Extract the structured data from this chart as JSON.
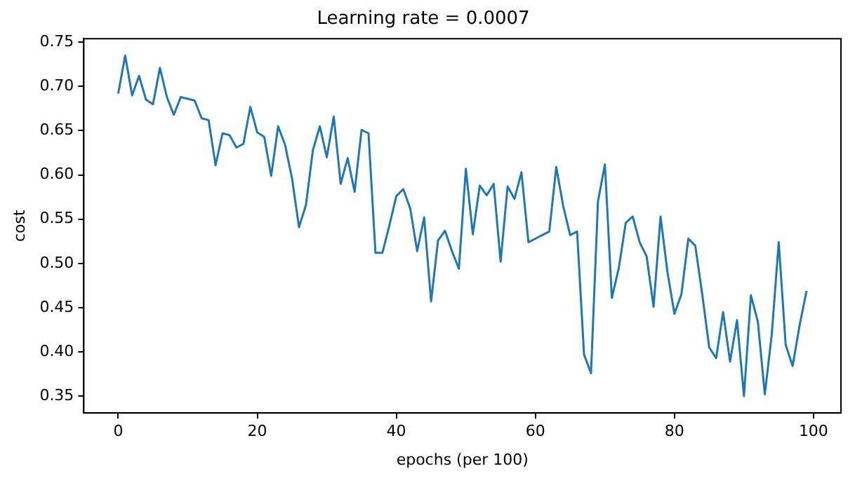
{
  "chart_data": {
    "type": "line",
    "title": "Learning rate = 0.0007",
    "xlabel": "epochs (per 100)",
    "ylabel": "cost",
    "x": [
      0,
      1,
      2,
      3,
      4,
      5,
      6,
      7,
      8,
      9,
      10,
      11,
      12,
      13,
      14,
      15,
      16,
      17,
      18,
      19,
      20,
      21,
      22,
      23,
      24,
      25,
      26,
      27,
      28,
      29,
      30,
      31,
      32,
      33,
      34,
      35,
      36,
      37,
      38,
      39,
      40,
      41,
      42,
      43,
      44,
      45,
      46,
      47,
      48,
      49,
      50,
      51,
      52,
      53,
      54,
      55,
      56,
      57,
      58,
      59,
      60,
      61,
      62,
      63,
      64,
      65,
      66,
      67,
      68,
      69,
      70,
      71,
      72,
      73,
      74,
      75,
      76,
      77,
      78,
      79,
      80,
      81,
      82,
      83,
      84,
      85,
      86,
      87,
      88,
      89,
      90,
      91,
      92,
      93,
      94,
      95,
      96,
      97,
      98,
      99
    ],
    "series": [
      {
        "color": "#1f77b4",
        "values": [
          0.692,
          0.735,
          0.69,
          0.712,
          0.685,
          0.68,
          0.721,
          0.688,
          0.668,
          0.688,
          0.686,
          0.684,
          0.664,
          0.662,
          0.611,
          0.647,
          0.645,
          0.631,
          0.635,
          0.677,
          0.648,
          0.643,
          0.599,
          0.655,
          0.634,
          0.596,
          0.541,
          0.566,
          0.628,
          0.655,
          0.62,
          0.666,
          0.59,
          0.619,
          0.581,
          0.651,
          0.647,
          0.512,
          0.512,
          0.543,
          0.576,
          0.584,
          0.562,
          0.514,
          0.552,
          0.457,
          0.526,
          0.537,
          0.514,
          0.494,
          0.607,
          0.533,
          0.588,
          0.577,
          0.59,
          0.502,
          0.587,
          0.573,
          0.603,
          0.524,
          0.528,
          0.532,
          0.536,
          0.609,
          0.565,
          0.532,
          0.536,
          0.397,
          0.376,
          0.57,
          0.612,
          0.461,
          0.495,
          0.546,
          0.553,
          0.524,
          0.508,
          0.451,
          0.553,
          0.49,
          0.443,
          0.465,
          0.528,
          0.52,
          0.465,
          0.405,
          0.393,
          0.445,
          0.389,
          0.436,
          0.35,
          0.464,
          0.434,
          0.352,
          0.42,
          0.524,
          0.408,
          0.384,
          0.43,
          0.469
        ]
      }
    ],
    "xlim": [
      -4.95,
      103.95
    ],
    "ylim": [
      0.331,
      0.754
    ],
    "xticks": [
      0,
      20,
      40,
      60,
      80,
      100
    ],
    "yticks": [
      {
        "value": 0.35,
        "label": "0.35"
      },
      {
        "value": 0.4,
        "label": "0.40"
      },
      {
        "value": 0.45,
        "label": "0.45"
      },
      {
        "value": 0.5,
        "label": "0.50"
      },
      {
        "value": 0.55,
        "label": "0.55"
      },
      {
        "value": 0.6,
        "label": "0.60"
      },
      {
        "value": 0.65,
        "label": "0.65"
      },
      {
        "value": 0.7,
        "label": "0.70"
      },
      {
        "value": 0.75,
        "label": "0.75"
      }
    ],
    "grid": false,
    "legend": false,
    "marker": "none",
    "line_style": "solid"
  }
}
